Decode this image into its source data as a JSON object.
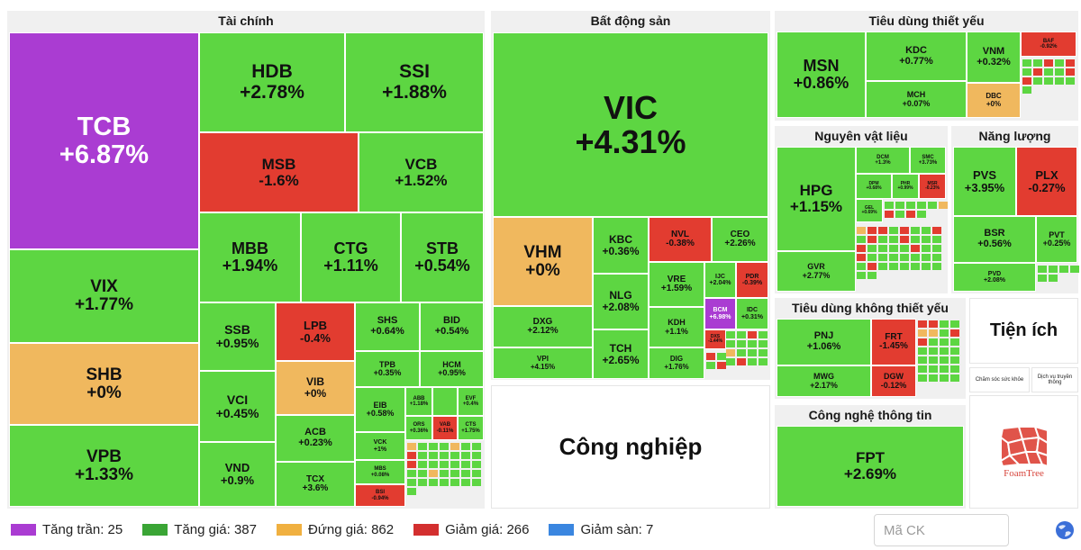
{
  "colors": {
    "ceiling": "#aa3cd2",
    "up": "#5dd642",
    "reference": "#f0b85e",
    "down": "#e23c30",
    "floor": "#3a86e0"
  },
  "sectors": {
    "finance": "Tài chính",
    "realestate": "Bất động sản",
    "staples": "Tiêu dùng thiết yếu",
    "materials": "Nguyên vật liệu",
    "energy": "Năng lượng",
    "discretionary": "Tiêu dùng không thiết yếu",
    "tech": "Công nghệ thông tin",
    "industrials": "Công nghiệp",
    "utilities": "Tiện ích"
  },
  "tiles": {
    "TCB": {
      "s": "TCB",
      "p": "+6.87%"
    },
    "HDB": {
      "s": "HDB",
      "p": "+2.78%"
    },
    "SSI": {
      "s": "SSI",
      "p": "+1.88%"
    },
    "MSB": {
      "s": "MSB",
      "p": "-1.6%"
    },
    "VCB": {
      "s": "VCB",
      "p": "+1.52%"
    },
    "MBB": {
      "s": "MBB",
      "p": "+1.94%"
    },
    "CTG": {
      "s": "CTG",
      "p": "+1.11%"
    },
    "STB": {
      "s": "STB",
      "p": "+0.54%"
    },
    "VIX": {
      "s": "VIX",
      "p": "+1.77%"
    },
    "SHB": {
      "s": "SHB",
      "p": "+0%"
    },
    "VPB": {
      "s": "VPB",
      "p": "+1.33%"
    },
    "SSB": {
      "s": "SSB",
      "p": "+0.95%"
    },
    "LPB": {
      "s": "LPB",
      "p": "-0.4%"
    },
    "VIB": {
      "s": "VIB",
      "p": "+0%"
    },
    "VCI": {
      "s": "VCI",
      "p": "+0.45%"
    },
    "ACB": {
      "s": "ACB",
      "p": "+0.23%"
    },
    "VND": {
      "s": "VND",
      "p": "+0.9%"
    },
    "TCX": {
      "s": "TCX",
      "p": "+3.6%"
    },
    "SHS": {
      "s": "SHS",
      "p": "+0.64%"
    },
    "BID": {
      "s": "BID",
      "p": "+0.54%"
    },
    "TPB": {
      "s": "TPB",
      "p": "+0.35%"
    },
    "HCM": {
      "s": "HCM",
      "p": "+0.95%"
    },
    "EIB": {
      "s": "EIB",
      "p": "+0.58%"
    },
    "VCK": {
      "s": "VCK",
      "p": "+1%"
    },
    "MBS": {
      "s": "MBS",
      "p": "+0.08%"
    },
    "BSI": {
      "s": "BSI",
      "p": "-0.94%"
    },
    "ABB": {
      "s": "ABB",
      "p": "+1.18%"
    },
    "EVF": {
      "s": "EVF",
      "p": "+0.4%"
    },
    "ORS": {
      "s": "ORS",
      "p": "+0.36%"
    },
    "VAB": {
      "s": "VAB",
      "p": "-0.11%"
    },
    "CTS": {
      "s": "CTS",
      "p": "+1.75%"
    },
    "VIC": {
      "s": "VIC",
      "p": "+4.31%"
    },
    "VHM": {
      "s": "VHM",
      "p": "+0%"
    },
    "KBC": {
      "s": "KBC",
      "p": "+0.36%"
    },
    "NVL": {
      "s": "NVL",
      "p": "-0.38%"
    },
    "CEO": {
      "s": "CEO",
      "p": "+2.26%"
    },
    "NLG": {
      "s": "NLG",
      "p": "+2.08%"
    },
    "VRE": {
      "s": "VRE",
      "p": "+1.59%"
    },
    "IJC": {
      "s": "IJC",
      "p": "+2.04%"
    },
    "PDR": {
      "s": "PDR",
      "p": "-0.39%"
    },
    "BCM": {
      "s": "BCM",
      "p": "+6.98%"
    },
    "IDC": {
      "s": "IDC",
      "p": "+0.31%"
    },
    "DXG": {
      "s": "DXG",
      "p": "+2.12%"
    },
    "TCH": {
      "s": "TCH",
      "p": "+2.65%"
    },
    "KDH": {
      "s": "KDH",
      "p": "+1.1%"
    },
    "VPI": {
      "s": "VPI",
      "p": "+4.15%"
    },
    "DIG": {
      "s": "DIG",
      "p": "+1.76%"
    },
    "DXS": {
      "s": "DXS",
      "p": "-1.44%"
    },
    "MSN": {
      "s": "MSN",
      "p": "+0.86%"
    },
    "KDC": {
      "s": "KDC",
      "p": "+0.77%"
    },
    "VNM": {
      "s": "VNM",
      "p": "+0.32%"
    },
    "BAF": {
      "s": "BAF",
      "p": "-0.92%"
    },
    "MCH": {
      "s": "MCH",
      "p": "+0.07%"
    },
    "DBC": {
      "s": "DBC",
      "p": "+0%"
    },
    "HPG": {
      "s": "HPG",
      "p": "+1.15%"
    },
    "DCM": {
      "s": "DCM",
      "p": "+1.3%"
    },
    "DPM": {
      "s": "DPM",
      "p": "+0.68%"
    },
    "SMC": {
      "s": "SMC",
      "p": "+3.73%"
    },
    "PHR": {
      "s": "PHR",
      "p": "+0.99%"
    },
    "MSR": {
      "s": "MSR",
      "p": "-0.23%"
    },
    "GVR": {
      "s": "GVR",
      "p": "+2.77%"
    },
    "GEL": {
      "s": "GEL",
      "p": "+0.69%"
    },
    "PVS": {
      "s": "PVS",
      "p": "+3.95%"
    },
    "PLX": {
      "s": "PLX",
      "p": "-0.27%"
    },
    "BSR": {
      "s": "BSR",
      "p": "+0.56%"
    },
    "PVT": {
      "s": "PVT",
      "p": "+0.25%"
    },
    "PVD": {
      "s": "PVD",
      "p": "+2.08%"
    },
    "PNJ": {
      "s": "PNJ",
      "p": "+1.06%"
    },
    "FRT": {
      "s": "FRT",
      "p": "-1.45%"
    },
    "MWG": {
      "s": "MWG",
      "p": "+2.17%"
    },
    "DGW": {
      "s": "DGW",
      "p": "-0.12%"
    },
    "FPT": {
      "s": "FPT",
      "p": "+2.69%"
    }
  },
  "utilities_subs": [
    "Chăm sóc sức khỏe",
    "Dịch vụ truyền thông"
  ],
  "brand": "FoamTree",
  "legend": [
    {
      "label": "Tăng trần: 25",
      "color": "#aa3cd2"
    },
    {
      "label": "Tăng giá: 387",
      "color": "#3aa535"
    },
    {
      "label": "Đứng giá: 862",
      "color": "#f0b040"
    },
    {
      "label": "Giảm giá: 266",
      "color": "#d32f2f"
    },
    {
      "label": "Giảm sàn: 7",
      "color": "#3a86e0"
    }
  ],
  "search": {
    "placeholder": "Mã CK"
  }
}
